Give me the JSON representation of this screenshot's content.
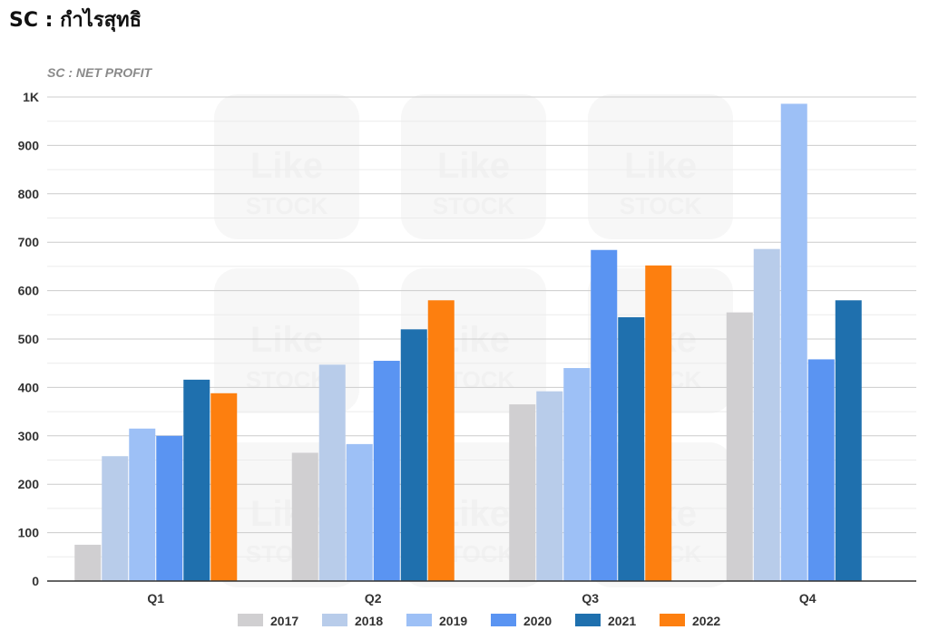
{
  "page": {
    "title": "SC : กำไรสุทธิ"
  },
  "watermark": {
    "line1": "Like",
    "line2": "STOCK"
  },
  "chart_data": {
    "type": "bar",
    "title": "SC : NET PROFIT",
    "xlabel": "",
    "ylabel": "",
    "categories": [
      "Q1",
      "Q2",
      "Q3",
      "Q4"
    ],
    "ylim": [
      0,
      1000
    ],
    "yticks": [
      0,
      100,
      200,
      300,
      400,
      500,
      600,
      700,
      800,
      900,
      1000
    ],
    "ytick_labels": [
      "0",
      "100",
      "200",
      "300",
      "400",
      "500",
      "600",
      "700",
      "800",
      "900",
      "1K"
    ],
    "grid": true,
    "legend_position": "bottom",
    "series": [
      {
        "name": "2017",
        "color": "#d0cfd1",
        "values": [
          75,
          265,
          365,
          555
        ]
      },
      {
        "name": "2018",
        "color": "#b8ccea",
        "values": [
          258,
          447,
          392,
          686
        ]
      },
      {
        "name": "2019",
        "color": "#9dc0f6",
        "values": [
          315,
          283,
          440,
          986
        ]
      },
      {
        "name": "2020",
        "color": "#5a94f2",
        "values": [
          300,
          455,
          684,
          458
        ]
      },
      {
        "name": "2021",
        "color": "#1f70ae",
        "values": [
          416,
          520,
          545,
          580
        ]
      },
      {
        "name": "2022",
        "color": "#fd7f0f",
        "values": [
          388,
          580,
          652,
          null
        ]
      }
    ]
  }
}
